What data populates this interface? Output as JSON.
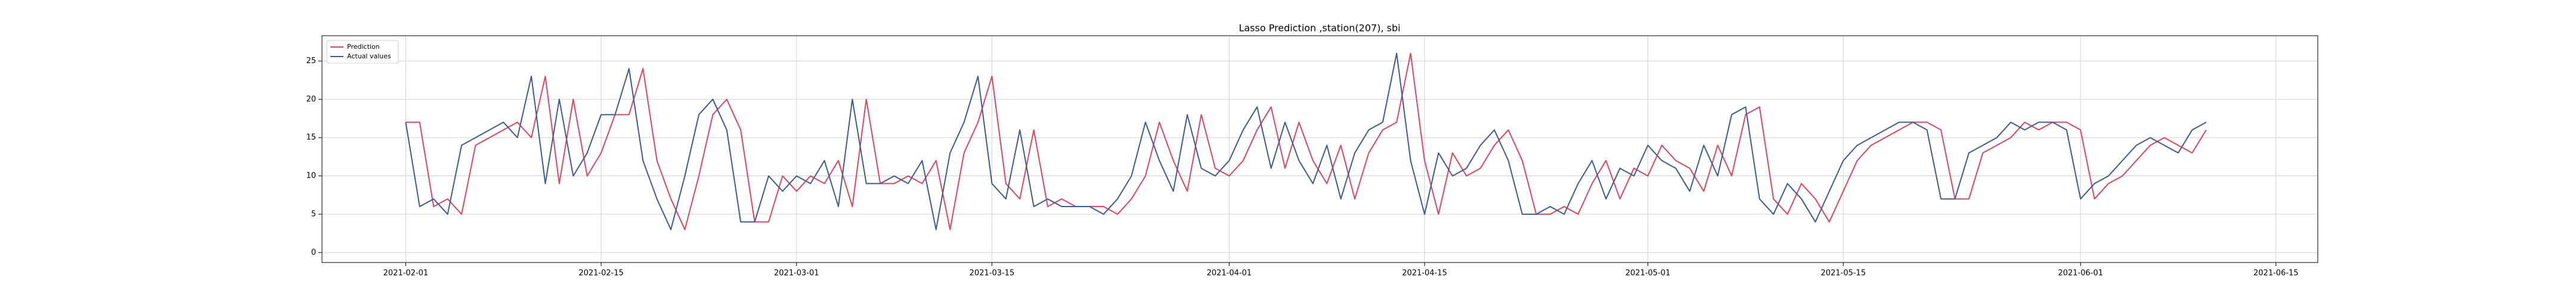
{
  "chart_data": {
    "type": "line",
    "title": "Lasso Prediction ,station(207), sbi",
    "x": [
      "2021-02-01",
      "2021-02-02",
      "2021-02-03",
      "2021-02-04",
      "2021-02-05",
      "2021-02-06",
      "2021-02-07",
      "2021-02-08",
      "2021-02-09",
      "2021-02-10",
      "2021-02-11",
      "2021-02-12",
      "2021-02-13",
      "2021-02-14",
      "2021-02-15",
      "2021-02-16",
      "2021-02-17",
      "2021-02-18",
      "2021-02-19",
      "2021-02-20",
      "2021-02-21",
      "2021-02-22",
      "2021-02-23",
      "2021-02-24",
      "2021-02-25",
      "2021-02-26",
      "2021-02-27",
      "2021-02-28",
      "2021-03-01",
      "2021-03-02",
      "2021-03-03",
      "2021-03-04",
      "2021-03-05",
      "2021-03-06",
      "2021-03-07",
      "2021-03-08",
      "2021-03-09",
      "2021-03-10",
      "2021-03-11",
      "2021-03-12",
      "2021-03-13",
      "2021-03-14",
      "2021-03-15",
      "2021-03-16",
      "2021-03-17",
      "2021-03-18",
      "2021-03-19",
      "2021-03-20",
      "2021-03-21",
      "2021-03-22",
      "2021-03-23",
      "2021-03-24",
      "2021-03-25",
      "2021-03-26",
      "2021-03-27",
      "2021-03-28",
      "2021-03-29",
      "2021-03-30",
      "2021-03-31",
      "2021-04-01",
      "2021-04-02",
      "2021-04-03",
      "2021-04-04",
      "2021-04-05",
      "2021-04-06",
      "2021-04-07",
      "2021-04-08",
      "2021-04-09",
      "2021-04-10",
      "2021-04-11",
      "2021-04-12",
      "2021-04-13",
      "2021-04-14",
      "2021-04-15",
      "2021-04-16",
      "2021-04-17",
      "2021-04-18",
      "2021-04-19",
      "2021-04-20",
      "2021-04-21",
      "2021-04-22",
      "2021-04-23",
      "2021-04-24",
      "2021-04-25",
      "2021-04-26",
      "2021-04-27",
      "2021-04-28",
      "2021-04-29",
      "2021-04-30",
      "2021-05-01",
      "2021-05-02",
      "2021-05-03",
      "2021-05-04",
      "2021-05-05",
      "2021-05-06",
      "2021-05-07",
      "2021-05-08",
      "2021-05-09",
      "2021-05-10",
      "2021-05-11",
      "2021-05-12",
      "2021-05-13",
      "2021-05-14",
      "2021-05-15",
      "2021-05-16",
      "2021-05-17",
      "2021-05-18",
      "2021-05-19",
      "2021-05-20",
      "2021-05-21",
      "2021-05-22",
      "2021-05-23",
      "2021-05-24",
      "2021-05-25",
      "2021-05-26",
      "2021-05-27",
      "2021-05-28",
      "2021-05-29",
      "2021-05-30",
      "2021-05-31",
      "2021-06-01",
      "2021-06-02",
      "2021-06-03",
      "2021-06-04",
      "2021-06-05",
      "2021-06-06",
      "2021-06-07",
      "2021-06-08",
      "2021-06-09",
      "2021-06-10"
    ],
    "series": [
      {
        "name": "Prediction",
        "color": "#e8415a",
        "values": [
          17,
          17,
          6,
          7,
          5,
          14,
          15,
          16,
          17,
          15,
          23,
          9,
          20,
          10,
          13,
          18,
          18,
          24,
          12,
          7,
          3,
          10,
          18,
          20,
          16,
          4,
          4,
          10,
          8,
          10,
          9,
          12,
          6,
          20,
          9,
          9,
          10,
          9,
          12,
          3,
          13,
          17,
          23,
          9,
          7,
          16,
          6,
          7,
          6,
          6,
          6,
          5,
          7,
          10,
          17,
          12,
          8,
          18,
          11,
          10,
          12,
          16,
          19,
          11,
          17,
          12,
          9,
          14,
          7,
          13,
          16,
          17,
          26,
          12,
          5,
          13,
          10,
          11,
          14,
          16,
          12,
          5,
          5,
          6,
          5,
          9,
          12,
          7,
          11,
          10,
          14,
          12,
          11,
          8,
          14,
          10,
          18,
          19,
          7,
          5,
          9,
          7,
          4,
          8,
          12,
          14,
          15,
          16,
          17,
          17,
          16,
          7,
          7,
          13,
          14,
          15,
          17,
          16,
          17,
          17,
          16,
          7,
          9,
          10,
          12,
          14,
          15,
          14,
          13,
          16
        ]
      },
      {
        "name": "Actual values",
        "color": "#3b5b92",
        "values": [
          17,
          6,
          7,
          5,
          14,
          15,
          16,
          17,
          15,
          23,
          9,
          20,
          10,
          13,
          18,
          18,
          24,
          12,
          7,
          3,
          10,
          18,
          20,
          16,
          4,
          4,
          10,
          8,
          10,
          9,
          12,
          6,
          20,
          9,
          9,
          10,
          9,
          12,
          3,
          13,
          17,
          23,
          9,
          7,
          16,
          6,
          7,
          6,
          6,
          6,
          5,
          7,
          10,
          17,
          12,
          8,
          18,
          11,
          10,
          12,
          16,
          19,
          11,
          17,
          12,
          9,
          14,
          7,
          13,
          16,
          17,
          26,
          12,
          5,
          13,
          10,
          11,
          14,
          16,
          12,
          5,
          5,
          6,
          5,
          9,
          12,
          7,
          11,
          10,
          14,
          12,
          11,
          8,
          14,
          10,
          18,
          19,
          7,
          5,
          9,
          7,
          4,
          8,
          12,
          14,
          15,
          16,
          17,
          17,
          16,
          7,
          7,
          13,
          14,
          15,
          17,
          16,
          17,
          17,
          16,
          7,
          9,
          10,
          12,
          14,
          15,
          14,
          13,
          16,
          17
        ]
      }
    ],
    "xlim": [
      "2021-01-26",
      "2021-06-18"
    ],
    "xticks": [
      "2021-02-01",
      "2021-02-15",
      "2021-03-01",
      "2021-03-15",
      "2021-04-01",
      "2021-04-15",
      "2021-05-01",
      "2021-05-15",
      "2021-06-01",
      "2021-06-15"
    ],
    "ylim": [
      -1.3,
      28.3
    ],
    "yticks": [
      0,
      5,
      10,
      15,
      20,
      25
    ],
    "grid": true,
    "legend": "upper left"
  }
}
